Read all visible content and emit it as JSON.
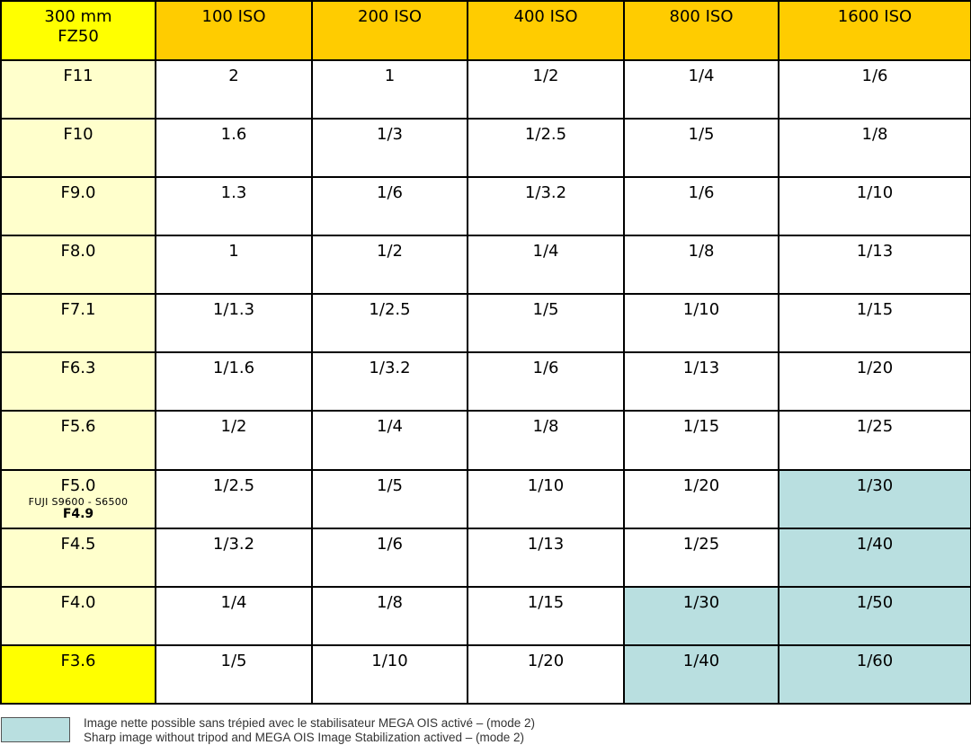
{
  "table": {
    "corner": [
      "300 mm",
      "FZ50"
    ],
    "columns": [
      "100 ISO",
      "200 ISO",
      "400 ISO",
      "800 ISO",
      "1600 ISO"
    ],
    "rows": [
      {
        "label": "F11",
        "values": [
          "2",
          "1",
          "1/2",
          "1/4",
          "1/6"
        ],
        "stabilized": [
          false,
          false,
          false,
          false,
          false
        ]
      },
      {
        "label": "F10",
        "values": [
          "1.6",
          "1/3",
          "1/2.5",
          "1/5",
          "1/8"
        ],
        "stabilized": [
          false,
          false,
          false,
          false,
          false
        ]
      },
      {
        "label": "F9.0",
        "values": [
          "1.3",
          "1/6",
          "1/3.2",
          "1/6",
          "1/10"
        ],
        "stabilized": [
          false,
          false,
          false,
          false,
          false
        ]
      },
      {
        "label": "F8.0",
        "values": [
          "1",
          "1/2",
          "1/4",
          "1/8",
          "1/13"
        ],
        "stabilized": [
          false,
          false,
          false,
          false,
          false
        ]
      },
      {
        "label": "F7.1",
        "values": [
          "1/1.3",
          "1/2.5",
          "1/5",
          "1/10",
          "1/15"
        ],
        "stabilized": [
          false,
          false,
          false,
          false,
          false
        ]
      },
      {
        "label": "F6.3",
        "values": [
          "1/1.6",
          "1/3.2",
          "1/6",
          "1/13",
          "1/20"
        ],
        "stabilized": [
          false,
          false,
          false,
          false,
          false
        ]
      },
      {
        "label": "F5.6",
        "values": [
          "1/2",
          "1/4",
          "1/8",
          "1/15",
          "1/25"
        ],
        "stabilized": [
          false,
          false,
          false,
          false,
          false
        ]
      },
      {
        "label": "F5.0",
        "sublabel": "FUJI S9600 - S6500",
        "sublabel_bold": "F4.9",
        "values": [
          "1/2.5",
          "1/5",
          "1/10",
          "1/20",
          "1/30"
        ],
        "stabilized": [
          false,
          false,
          false,
          false,
          true
        ]
      },
      {
        "label": "F4.5",
        "values": [
          "1/3.2",
          "1/6",
          "1/13",
          "1/25",
          "1/40"
        ],
        "stabilized": [
          false,
          false,
          false,
          false,
          true
        ]
      },
      {
        "label": "F4.0",
        "values": [
          "1/4",
          "1/8",
          "1/15",
          "1/30",
          "1/50"
        ],
        "stabilized": [
          false,
          false,
          false,
          true,
          true
        ]
      },
      {
        "label": "F3.6",
        "highlight": true,
        "values": [
          "1/5",
          "1/10",
          "1/20",
          "1/40",
          "1/60"
        ],
        "stabilized": [
          false,
          false,
          false,
          true,
          true
        ]
      }
    ]
  },
  "legend": {
    "line_fr": "Image nette possible sans trépied avec le stabilisateur MEGA OIS activé – (mode 2)",
    "line_en": "Sharp image without tripod and MEGA OIS Image Stabilization actived – (mode 2)"
  },
  "colors": {
    "corner": "#ffff00",
    "header": "#ffcc00",
    "row_label": "#ffffcc",
    "stabilized": "#b9dfe0"
  }
}
